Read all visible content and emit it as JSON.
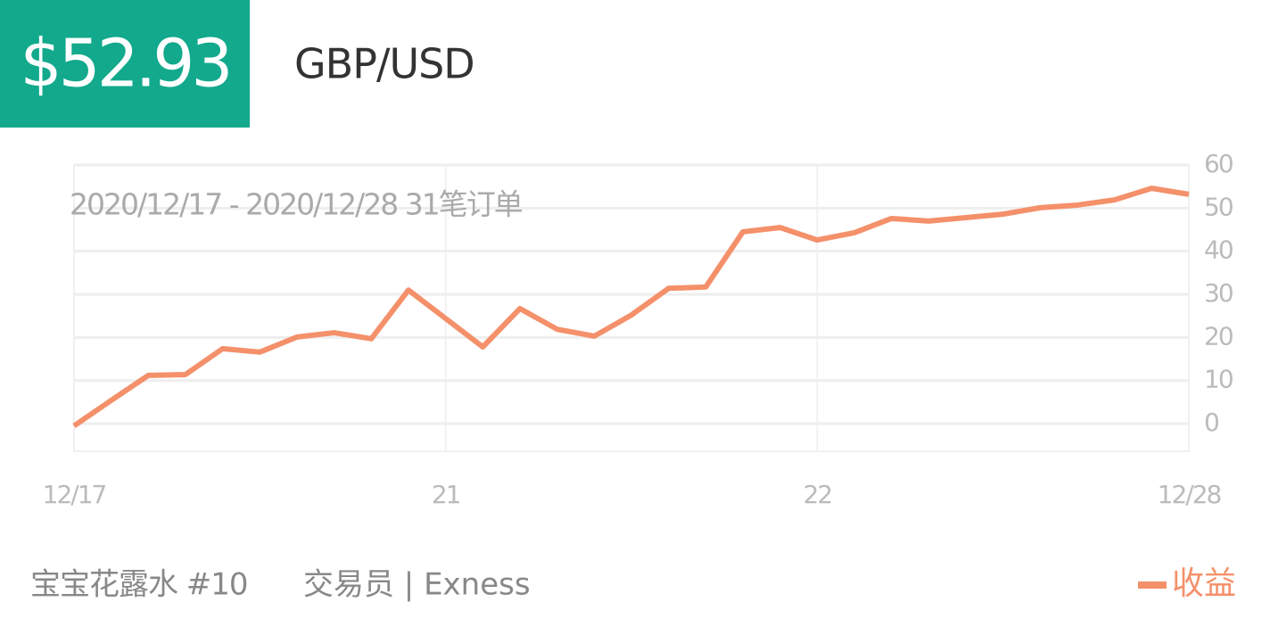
{
  "header": {
    "price": "$52.93",
    "pair": "GBP/USD"
  },
  "chart_data": {
    "type": "line",
    "subtitle": "2020/12/17 - 2020/12/28  31笔订单",
    "categories": [
      "12/17",
      null,
      null,
      null,
      null,
      null,
      null,
      null,
      null,
      null,
      "21",
      null,
      null,
      null,
      null,
      null,
      null,
      null,
      null,
      null,
      "22",
      null,
      null,
      null,
      null,
      null,
      null,
      null,
      null,
      null,
      "12/28"
    ],
    "series": [
      {
        "name": "收益",
        "color": "#f4906a",
        "values": [
          -0.5,
          5.4,
          11.2,
          11.4,
          17.4,
          16.6,
          20.1,
          21.1,
          19.7,
          31.0,
          24.4,
          17.8,
          26.7,
          21.9,
          20.3,
          25.2,
          31.4,
          31.7,
          44.5,
          45.5,
          42.6,
          44.3,
          47.6,
          47.0,
          47.8,
          48.6,
          50.1,
          50.7,
          51.9,
          54.6,
          53.2
        ]
      }
    ],
    "ylim": [
      -6.4,
      60
    ],
    "yticks": [
      0,
      10,
      20,
      30,
      40,
      50,
      60
    ],
    "grid": true,
    "legend": "bottom-right"
  },
  "footer": {
    "name": "宝宝花露水 #10",
    "role": "交易员 | Exness"
  }
}
